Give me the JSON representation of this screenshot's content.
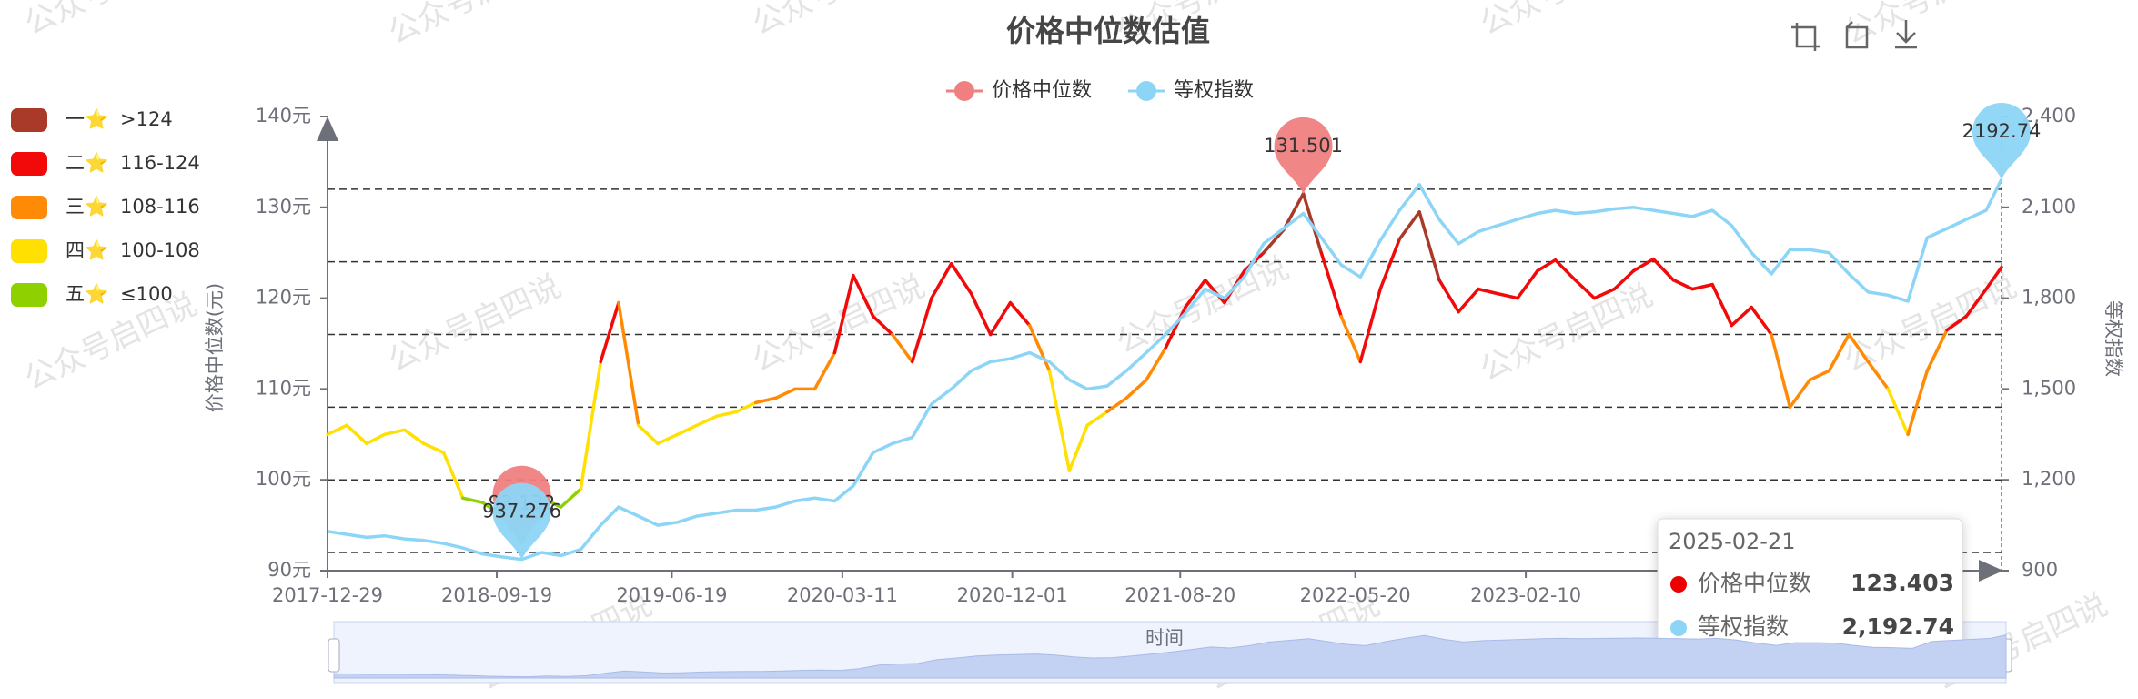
{
  "chart_data": {
    "type": "line",
    "title": "价格中位数估值",
    "watermark": "公众号启四说",
    "x_axis_name": "时间",
    "y_axis_name": "价格中位数(元)",
    "y2_axis_name": "等权指数",
    "xlim": [
      "2017-12-29",
      "2025-02-21"
    ],
    "xticks": [
      "2017-12-29",
      "2018-09-19",
      "2019-06-19",
      "2020-03-11",
      "2020-12-01",
      "2021-08-20",
      "2022-05-20",
      "2023-02-10"
    ],
    "ylim": [
      90,
      140
    ],
    "yticks": [
      {
        "value": 90,
        "label": "90元"
      },
      {
        "value": 100,
        "label": "100元"
      },
      {
        "value": 110,
        "label": "110元"
      },
      {
        "value": 120,
        "label": "120元"
      },
      {
        "value": 130,
        "label": "130元"
      },
      {
        "value": 140,
        "label": "140元"
      }
    ],
    "y2lim": [
      900,
      2400
    ],
    "y2ticks": [
      900,
      {
        "value": 1200,
        "label": "1,200"
      },
      {
        "value": 1500,
        "label": "1,500"
      },
      {
        "value": 1800,
        "label": "1,800"
      },
      {
        "value": 2100,
        "label": "2,100"
      },
      {
        "value": 2400,
        "label": "2,400"
      }
    ],
    "mark_lines": [
      92,
      100,
      108,
      116,
      124,
      132
    ],
    "pieces": [
      {
        "label": "一⭐",
        "range": ">124",
        "min": 124,
        "color": "#a93a2a"
      },
      {
        "label": "二⭐",
        "range": "116-124",
        "min": 116,
        "color": "#f20a0a"
      },
      {
        "label": "三⭐",
        "range": "108-116",
        "min": 108,
        "color": "#ff8a05"
      },
      {
        "label": "四⭐",
        "range": "100-108",
        "min": 100,
        "color": "#ffe000"
      },
      {
        "label": "五⭐",
        "range": "≤100",
        "color": "#8fd100"
      }
    ],
    "x": [
      "2017-12-29",
      "2018-01-28",
      "2018-02-28",
      "2018-03-28",
      "2018-04-28",
      "2018-05-28",
      "2018-06-28",
      "2018-07-28",
      "2018-08-28",
      "2018-09-28",
      "2018-10-28",
      "2018-11-28",
      "2018-12-28",
      "2019-01-28",
      "2019-02-28",
      "2019-03-28",
      "2019-04-28",
      "2019-05-28",
      "2019-06-28",
      "2019-07-28",
      "2019-08-28",
      "2019-09-28",
      "2019-10-28",
      "2019-11-28",
      "2019-12-28",
      "2020-01-28",
      "2020-02-28",
      "2020-03-28",
      "2020-04-28",
      "2020-05-28",
      "2020-06-28",
      "2020-07-28",
      "2020-08-28",
      "2020-09-28",
      "2020-10-28",
      "2020-11-28",
      "2020-12-28",
      "2021-01-28",
      "2021-02-28",
      "2021-03-28",
      "2021-04-28",
      "2021-05-28",
      "2021-06-28",
      "2021-07-28",
      "2021-08-28",
      "2021-09-28",
      "2021-10-28",
      "2021-11-28",
      "2021-12-28",
      "2022-01-28",
      "2022-02-28",
      "2022-03-28",
      "2022-04-28",
      "2022-05-28",
      "2022-06-28",
      "2022-07-28",
      "2022-08-28",
      "2022-09-28",
      "2022-10-28",
      "2022-11-28",
      "2022-12-28",
      "2023-01-28",
      "2023-02-28",
      "2023-03-28",
      "2023-04-28",
      "2023-05-28",
      "2023-06-28",
      "2023-07-28",
      "2023-08-28",
      "2023-09-28",
      "2023-10-28",
      "2023-11-28",
      "2023-12-28",
      "2024-01-28",
      "2024-02-28",
      "2024-03-28",
      "2024-04-28",
      "2024-05-28",
      "2024-06-28",
      "2024-07-28",
      "2024-08-28",
      "2024-09-28",
      "2024-10-28",
      "2024-11-28",
      "2024-12-28",
      "2025-01-28",
      "2025-02-21"
    ],
    "series": [
      {
        "name": "价格中位数",
        "color": "#f08080",
        "mark_points": [
          "max",
          "min"
        ],
        "values": [
          105,
          106,
          104,
          105,
          105.5,
          104,
          103,
          98,
          97.5,
          96,
          93.132,
          98,
          97,
          99,
          113,
          119.5,
          106,
          104,
          105,
          106,
          107,
          107.5,
          108.5,
          109,
          110,
          110,
          114,
          122.5,
          118,
          116,
          113,
          120,
          123.8,
          120.5,
          116,
          119.5,
          117,
          112,
          101,
          106,
          107.5,
          109,
          111,
          114.5,
          119,
          122,
          119.5,
          123,
          125,
          127.5,
          131.501,
          125,
          118,
          113,
          121,
          126.5,
          129.5,
          122,
          118.5,
          121,
          120.5,
          120,
          123,
          124.2,
          122,
          120,
          121,
          123,
          124.3,
          122,
          121,
          121.5,
          117,
          119,
          116,
          108,
          111,
          112,
          116,
          113,
          110,
          105,
          112,
          116.5,
          118,
          121,
          123.403
        ]
      },
      {
        "name": "等权指数",
        "color": "#8dd5f6",
        "axis": "y2",
        "mark_points": [
          "max",
          "min"
        ],
        "tooltip_value_label": "2,192.74",
        "values": [
          1030,
          1020,
          1010,
          1015,
          1005,
          1000,
          990,
          975,
          955,
          945,
          937.276,
          960,
          950,
          970,
          1050,
          1110,
          1080,
          1050,
          1060,
          1080,
          1090,
          1100,
          1100,
          1110,
          1130,
          1140,
          1130,
          1180,
          1290,
          1320,
          1340,
          1450,
          1500,
          1560,
          1590,
          1600,
          1620,
          1590,
          1530,
          1500,
          1510,
          1560,
          1620,
          1680,
          1750,
          1830,
          1800,
          1870,
          1980,
          2030,
          2080,
          2000,
          1910,
          1870,
          1990,
          2090,
          2175,
          2060,
          1980,
          2020,
          2040,
          2060,
          2080,
          2090,
          2080,
          2085,
          2095,
          2100,
          2090,
          2080,
          2070,
          2090,
          2040,
          1950,
          1880,
          1960,
          1960,
          1950,
          1880,
          1820,
          1810,
          1790,
          2000,
          2030,
          2060,
          2090,
          2192.74
        ]
      }
    ]
  }
}
